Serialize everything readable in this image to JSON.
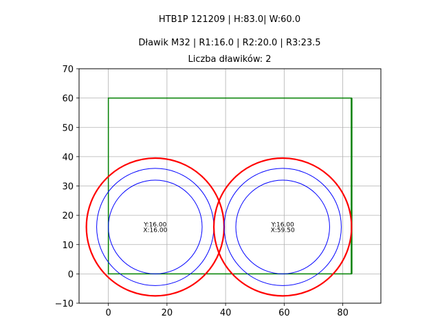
{
  "titles": [
    "HTB1P 121209 | H:83.0| W:60.0",
    "Dławik M32 | R1:16.0 | R2:20.0 | R3:23.5",
    "Liczba dławików: 2"
  ],
  "chart_data": {
    "type": "scatter",
    "title": "HTB1P 121209 | H:83.0| W:60.0",
    "xlabel": "",
    "ylabel": "",
    "xlim": [
      -10,
      93
    ],
    "ylim": [
      -10,
      70
    ],
    "xticks": [
      0,
      20,
      40,
      60,
      80
    ],
    "yticks": [
      -10,
      0,
      10,
      20,
      30,
      40,
      50,
      60,
      70
    ],
    "xtick_labels": [
      "0",
      "20",
      "40",
      "60",
      "80"
    ],
    "ytick_labels": [
      "−10",
      "0",
      "10",
      "20",
      "30",
      "40",
      "50",
      "60",
      "70"
    ],
    "grid": true,
    "rectangle": {
      "x0": 0,
      "y0": 0,
      "x1": 83,
      "y1": 60,
      "color": "#008000"
    },
    "glands": [
      {
        "cx": 16.0,
        "cy": 16.0,
        "label_y": "Y:16.00",
        "label_x": "X:16.00"
      },
      {
        "cx": 59.5,
        "cy": 16.0,
        "label_y": "Y:16.00",
        "label_x": "X:59.50"
      }
    ],
    "radii": [
      {
        "r": 16.0,
        "color": "#0000ff",
        "width": 1
      },
      {
        "r": 20.0,
        "color": "#0000ff",
        "width": 1
      },
      {
        "r": 23.5,
        "color": "#ff0000",
        "width": 2.2
      }
    ],
    "colors": {
      "grid": "#b0b0b0",
      "axes": "#000000"
    }
  }
}
